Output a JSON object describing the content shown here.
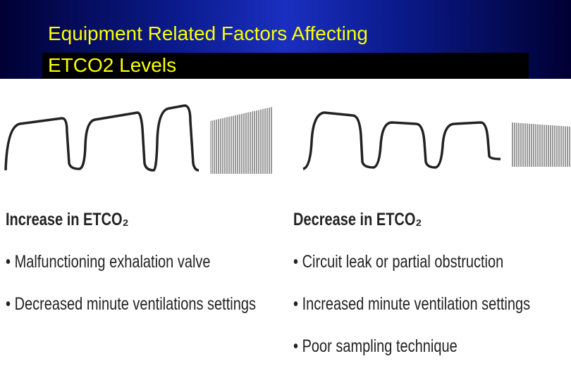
{
  "header": {
    "title_lines": [
      "Equipment Related Factors Affecting",
      "ETCO2 Levels"
    ]
  },
  "columns": [
    {
      "heading": "Increase in ETCO₂",
      "bullets": [
        "Malfunctioning exhalation valve",
        "Decreased minute ventilations settings"
      ]
    },
    {
      "heading": "Decrease in ETCO₂",
      "bullets": [
        "Circuit leak or partial obstruction",
        "Increased minute ventilation settings",
        "Poor sampling technique"
      ]
    }
  ]
}
